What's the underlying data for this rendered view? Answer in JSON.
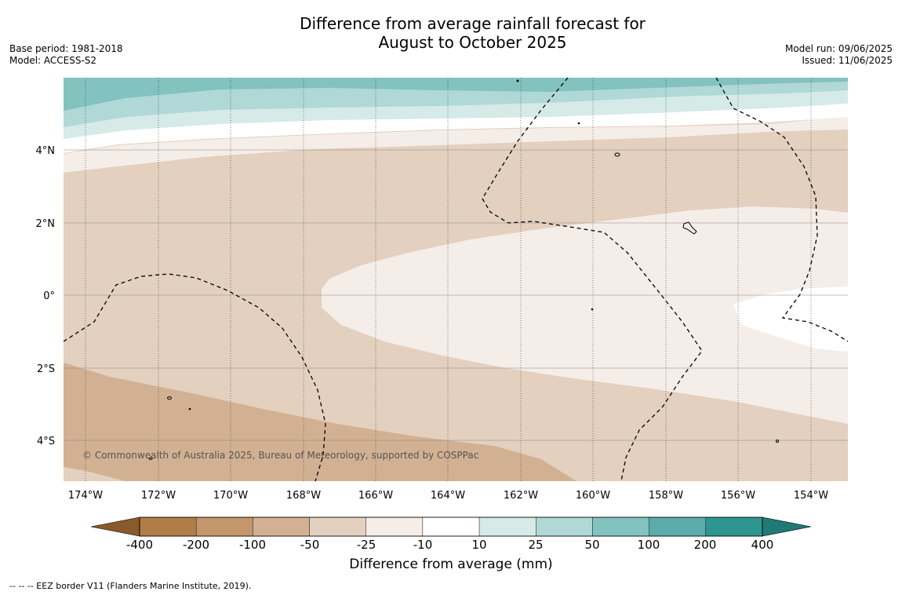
{
  "title": {
    "line1": "Difference from average rainfall forecast for",
    "line2": "August to October 2025"
  },
  "meta_left": {
    "base_period": "Base period: 1981-2018",
    "model": "Model: ACCESS-S2"
  },
  "meta_right": {
    "model_run": "Model run: 09/06/2025",
    "issued": "Issued: 11/06/2025"
  },
  "map": {
    "lat_labels": [
      "4°N",
      "2°N",
      "0°",
      "2°S",
      "4°S"
    ],
    "lon_labels": [
      "174°W",
      "172°W",
      "170°W",
      "168°W",
      "166°W",
      "164°W",
      "162°W",
      "160°W",
      "158°W",
      "156°W",
      "154°W"
    ],
    "copyright": "© Commonwealth of Australia 2025, Bureau of Meteorology, supported by COSPPac"
  },
  "colorbar": {
    "tick_labels": [
      "-400",
      "-200",
      "-100",
      "-50",
      "-25",
      "-10",
      "10",
      "25",
      "50",
      "100",
      "200",
      "400"
    ],
    "colors": [
      "#8a5a2b",
      "#b07c48",
      "#c4966c",
      "#d2b192",
      "#e3d0bf",
      "#f5ede8",
      "#ffffff",
      "#d6eae8",
      "#b0d8d7",
      "#82c2bf",
      "#5aadaa",
      "#2e9590",
      "#207a75"
    ],
    "label": "Difference from average (mm)"
  },
  "footer": "-- -- -- EEZ border V11 (Flanders Marine Institute, 2019)."
}
